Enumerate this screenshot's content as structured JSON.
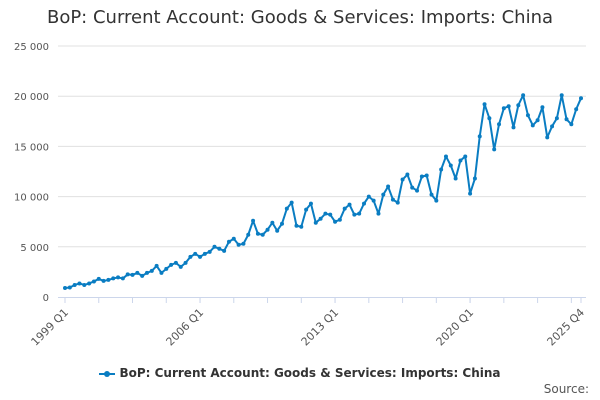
{
  "chart_data": {
    "type": "line",
    "title": "BoP: Current Account: Goods & Services: Imports: China",
    "xlabel": "",
    "ylabel": "",
    "ylim": [
      0,
      25000
    ],
    "yticks": [
      0,
      5000,
      10000,
      15000,
      20000,
      25000
    ],
    "ytick_labels": [
      "0",
      "5 000",
      "10 000",
      "15 000",
      "20 000",
      "25 000"
    ],
    "xtick_labels": [
      "1999 Q1",
      "2006 Q1",
      "2013 Q1",
      "2020 Q1",
      "2025 Q4"
    ],
    "xtick_index": [
      0,
      28,
      56,
      84,
      107
    ],
    "x_start": "1999 Q1",
    "x_end": "2025 Q4",
    "grid": true,
    "legend_position": "bottom",
    "series": [
      {
        "name": "BoP: Current Account: Goods & Services: Imports: China",
        "color": "#0a7dc2",
        "values": [
          900,
          950,
          1200,
          1350,
          1200,
          1350,
          1550,
          1800,
          1600,
          1700,
          1850,
          1950,
          1850,
          2250,
          2200,
          2400,
          2100,
          2400,
          2600,
          3100,
          2400,
          2800,
          3200,
          3400,
          3000,
          3400,
          4000,
          4300,
          4000,
          4300,
          4500,
          5000,
          4800,
          4600,
          5500,
          5800,
          5200,
          5300,
          6200,
          7600,
          6300,
          6200,
          6700,
          7400,
          6600,
          7300,
          8800,
          9400,
          7100,
          7000,
          8700,
          9300,
          7400,
          7800,
          8300,
          8200,
          7500,
          7700,
          8800,
          9200,
          8200,
          8300,
          9300,
          10000,
          9600,
          8300,
          10200,
          11000,
          9700,
          9400,
          11700,
          12200,
          10900,
          10600,
          12000,
          12100,
          10200,
          9600,
          12700,
          14000,
          13100,
          11800,
          13600,
          14000,
          10300,
          11800,
          16000,
          19200,
          17800,
          14700,
          17200,
          18800,
          19000,
          16900,
          19100,
          20100,
          18100,
          17100,
          17600,
          18900,
          15900,
          17000,
          17800,
          20100,
          17700,
          17200,
          18700,
          19800
        ]
      }
    ]
  },
  "source_label": "Source:"
}
